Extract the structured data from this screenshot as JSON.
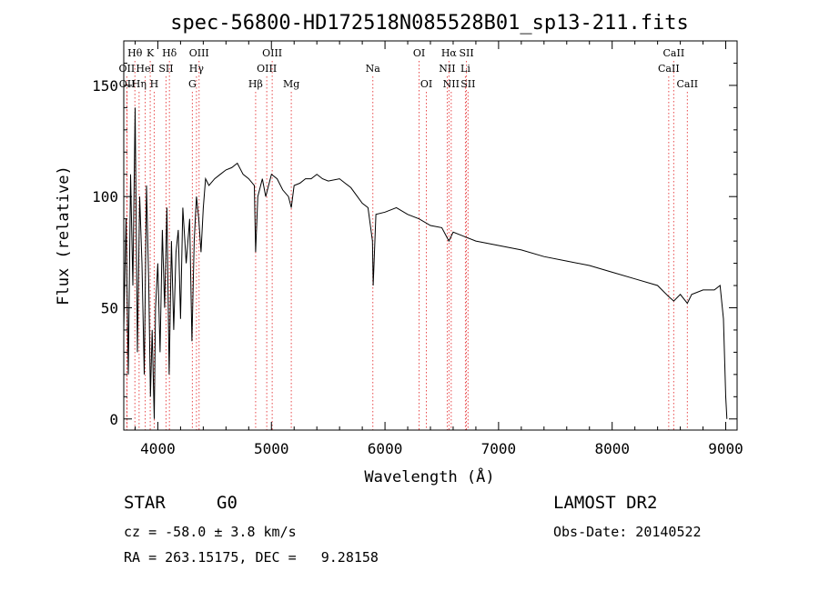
{
  "chart_data": {
    "type": "line",
    "title": "spec-56800-HD172518N085528B01_sp13-211.fits",
    "xlabel": "Wavelength (Å)",
    "ylabel": "Flux (relative)",
    "xlim": [
      3700,
      9100
    ],
    "ylim": [
      -5,
      170
    ],
    "xticks": [
      4000,
      5000,
      6000,
      7000,
      8000,
      9000
    ],
    "yticks": [
      0,
      50,
      100,
      150
    ],
    "grid": false,
    "line_color": "#000000",
    "marker_color": "#e8494b",
    "series": [
      {
        "x": [
          3700,
          3720,
          3740,
          3760,
          3780,
          3800,
          3820,
          3840,
          3860,
          3880,
          3900,
          3920,
          3935,
          3950,
          3968,
          3980,
          4000,
          4020,
          4040,
          4060,
          4080,
          4100,
          4120,
          4140,
          4160,
          4180,
          4200,
          4220,
          4250,
          4280,
          4300,
          4320,
          4340,
          4360,
          4380,
          4400,
          4420,
          4450,
          4500,
          4550,
          4600,
          4650,
          4700,
          4750,
          4800,
          4850,
          4861,
          4880,
          4920,
          4950,
          5000,
          5050,
          5100,
          5150,
          5175,
          5200,
          5250,
          5300,
          5350,
          5400,
          5450,
          5500,
          5600,
          5700,
          5800,
          5850,
          5890,
          5896,
          5920,
          6000,
          6100,
          6200,
          6300,
          6400,
          6500,
          6563,
          6600,
          6700,
          6800,
          7000,
          7200,
          7400,
          7600,
          7800,
          8000,
          8200,
          8400,
          8498,
          8542,
          8600,
          8662,
          8700,
          8800,
          8900,
          8950,
          8980,
          9000,
          9010
        ],
        "y": [
          40,
          90,
          20,
          110,
          60,
          140,
          30,
          100,
          70,
          20,
          105,
          60,
          10,
          40,
          0,
          50,
          70,
          30,
          85,
          50,
          95,
          20,
          80,
          40,
          75,
          85,
          45,
          95,
          70,
          90,
          35,
          80,
          100,
          90,
          75,
          95,
          108,
          105,
          108,
          110,
          112,
          113,
          115,
          110,
          108,
          105,
          75,
          100,
          108,
          100,
          110,
          108,
          103,
          100,
          95,
          105,
          106,
          108,
          108,
          110,
          108,
          107,
          108,
          104,
          97,
          95,
          80,
          60,
          92,
          93,
          95,
          92,
          90,
          87,
          86,
          80,
          84,
          82,
          80,
          78,
          76,
          73,
          71,
          69,
          66,
          63,
          60,
          55,
          53,
          56,
          52,
          56,
          58,
          58,
          60,
          45,
          10,
          0
        ]
      }
    ],
    "lines": [
      {
        "name": "Hθ",
        "x": 3798,
        "row": 1
      },
      {
        "name": "K",
        "x": 3933,
        "row": 1
      },
      {
        "name": "Hδ",
        "x": 4102,
        "row": 1
      },
      {
        "name": "OIII",
        "x": 4363,
        "row": 1
      },
      {
        "name": "OIII",
        "x": 5007,
        "row": 1
      },
      {
        "name": "OI",
        "x": 6300,
        "row": 1
      },
      {
        "name": "Hα",
        "x": 6563,
        "row": 1
      },
      {
        "name": "SII",
        "x": 6717,
        "row": 1
      },
      {
        "name": "CaII",
        "x": 8542,
        "row": 1
      },
      {
        "name": "OII",
        "x": 3727,
        "row": 2
      },
      {
        "name": "HeI",
        "x": 3889,
        "row": 2
      },
      {
        "name": "SII",
        "x": 4072,
        "row": 2
      },
      {
        "name": "Hγ",
        "x": 4340,
        "row": 2
      },
      {
        "name": "OIII",
        "x": 4959,
        "row": 2
      },
      {
        "name": "Na",
        "x": 5893,
        "row": 2
      },
      {
        "name": "NII",
        "x": 6548,
        "row": 2
      },
      {
        "name": "Li",
        "x": 6708,
        "row": 2
      },
      {
        "name": "CaII",
        "x": 8498,
        "row": 2
      },
      {
        "name": "OII",
        "x": 3729,
        "row": 3
      },
      {
        "name": "Hη",
        "x": 3835,
        "row": 3
      },
      {
        "name": "H",
        "x": 3968,
        "row": 3
      },
      {
        "name": "G",
        "x": 4304,
        "row": 3
      },
      {
        "name": "Hβ",
        "x": 4861,
        "row": 3
      },
      {
        "name": "Mg",
        "x": 5175,
        "row": 3
      },
      {
        "name": "OI",
        "x": 6364,
        "row": 3
      },
      {
        "name": "NII",
        "x": 6583,
        "row": 3
      },
      {
        "name": "SII",
        "x": 6731,
        "row": 3
      },
      {
        "name": "CaII",
        "x": 8662,
        "row": 3
      }
    ]
  },
  "info": {
    "class_label": "STAR",
    "subclass": "G0",
    "survey": "LAMOST DR2",
    "redshift": "cz = -58.0 ± 3.8 km/s",
    "obs_date": "Obs-Date: 20140522",
    "coords": "RA = 263.15175, DEC =   9.28158"
  }
}
